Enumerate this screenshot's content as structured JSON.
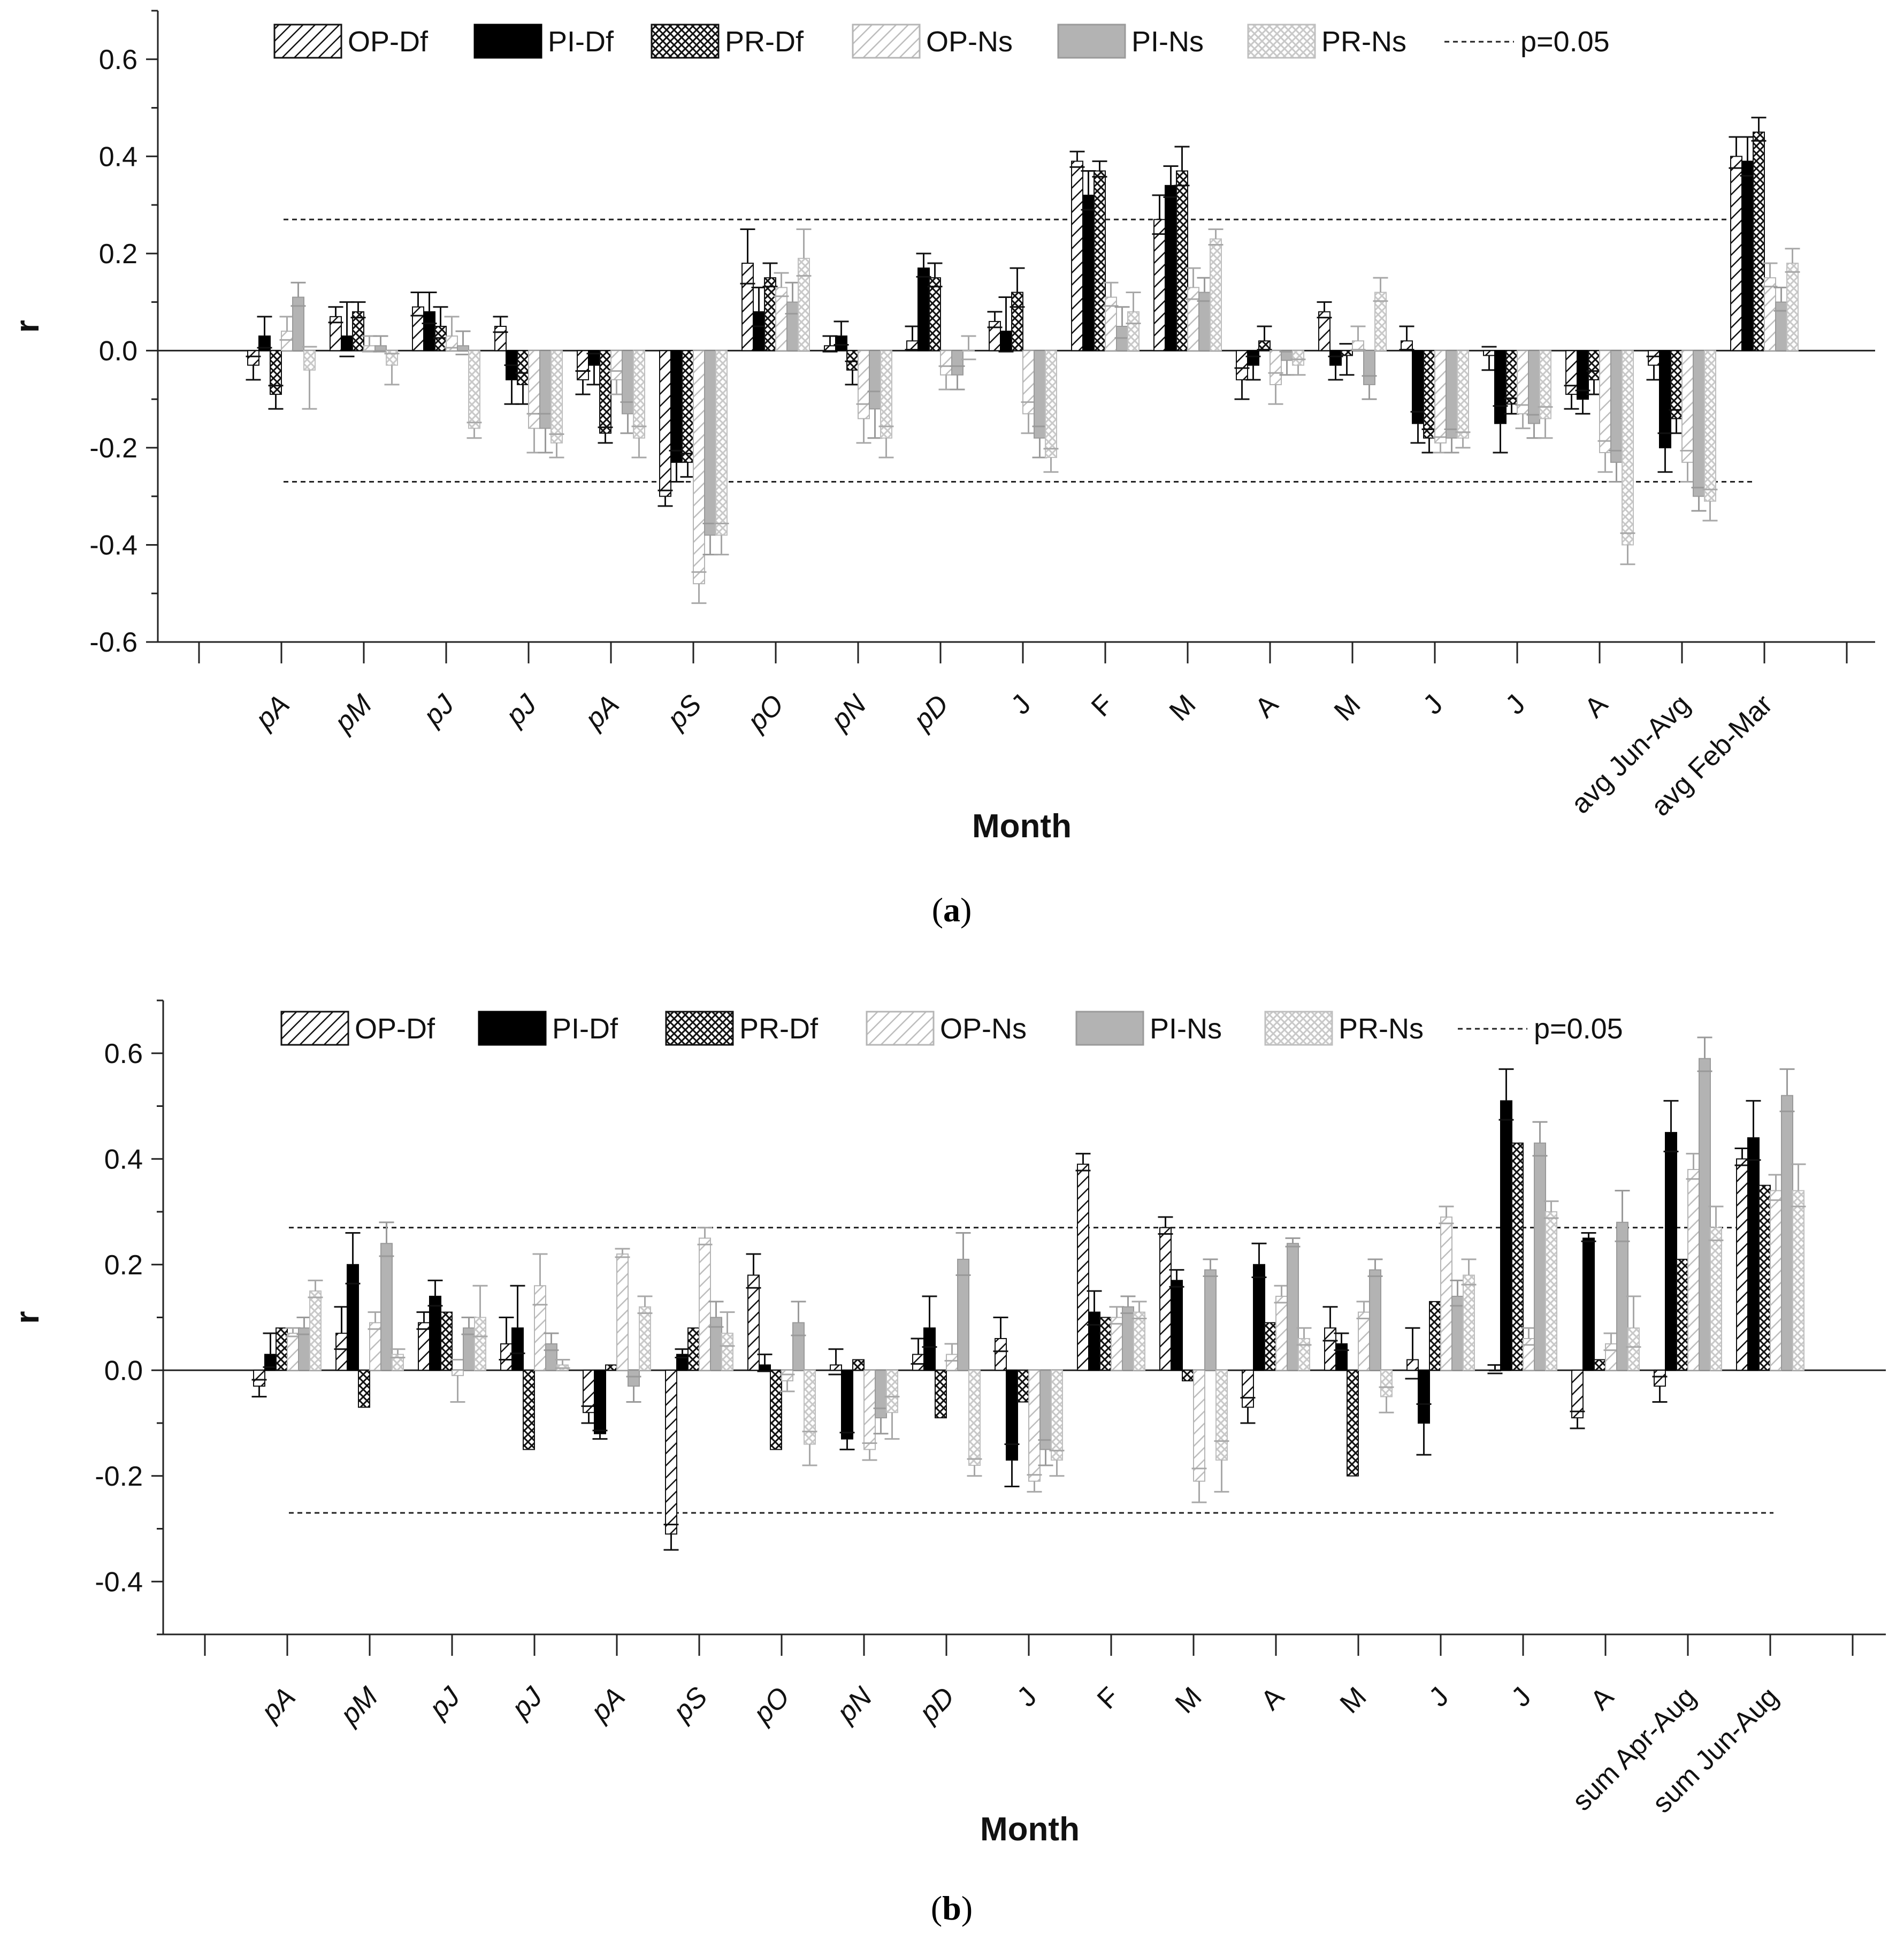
{
  "figure": {
    "caption_a_label": "a",
    "caption_b_label": "b"
  },
  "chart_data": [
    {
      "panel": "a",
      "type": "bar",
      "title": "",
      "xlabel": "Month",
      "ylabel": "r",
      "ylim": [
        -0.6,
        0.7
      ],
      "yticks": [
        -0.6,
        -0.4,
        -0.2,
        0.0,
        0.2,
        0.4,
        0.6
      ],
      "significance_lines": [
        0.27,
        -0.27
      ],
      "significance_label": "p=0.05",
      "legend_position": "top",
      "categories": [
        "pA",
        "pM",
        "pJ",
        "pJ",
        "pA",
        "pS",
        "pO",
        "pN",
        "pD",
        "J",
        "F",
        "M",
        "A",
        "M",
        "J",
        "J",
        "A",
        "avg Jun-Avg",
        "avg Feb-Mar"
      ],
      "series": [
        {
          "name": "OP-Df",
          "style": "hatch-dark",
          "values": [
            -0.03,
            0.07,
            0.09,
            0.05,
            -0.06,
            -0.3,
            0.18,
            0.01,
            0.02,
            0.06,
            0.39,
            0.27,
            -0.06,
            0.08,
            0.02,
            -0.01,
            -0.09,
            -0.03,
            0.4
          ],
          "errors": [
            0.03,
            0.02,
            0.03,
            0.02,
            0.03,
            0.02,
            0.07,
            0.02,
            0.03,
            0.02,
            0.02,
            0.05,
            0.04,
            0.02,
            0.03,
            0.03,
            0.03,
            0.03,
            0.04
          ]
        },
        {
          "name": "PI-Df",
          "style": "solid-dark",
          "values": [
            0.03,
            0.03,
            0.08,
            -0.06,
            -0.03,
            -0.23,
            0.08,
            0.03,
            0.17,
            0.04,
            0.32,
            0.34,
            -0.03,
            -0.03,
            -0.15,
            -0.15,
            -0.1,
            -0.2,
            0.39
          ],
          "errors": [
            0.04,
            0.07,
            0.04,
            0.05,
            0.04,
            0.04,
            0.05,
            0.03,
            0.03,
            0.07,
            0.05,
            0.04,
            0.03,
            0.03,
            0.04,
            0.06,
            0.03,
            0.05,
            0.05
          ]
        },
        {
          "name": "PR-Df",
          "style": "crosshatch-dark",
          "values": [
            -0.09,
            0.08,
            0.05,
            -0.07,
            -0.17,
            -0.23,
            0.15,
            -0.04,
            0.15,
            0.12,
            0.37,
            0.37,
            0.02,
            -0.01,
            -0.18,
            -0.11,
            -0.06,
            -0.14,
            0.45
          ],
          "errors": [
            0.03,
            0.02,
            0.04,
            0.04,
            0.02,
            0.03,
            0.03,
            0.03,
            0.03,
            0.05,
            0.02,
            0.05,
            0.03,
            0.04,
            0.03,
            0.02,
            0.03,
            0.03,
            0.03
          ]
        },
        {
          "name": "OP-Ns",
          "style": "hatch-light",
          "values": [
            0.04,
            0.01,
            0.03,
            -0.16,
            -0.06,
            -0.48,
            0.13,
            -0.14,
            -0.05,
            -0.13,
            0.11,
            0.13,
            -0.07,
            0.02,
            -0.19,
            -0.13,
            -0.21,
            -0.23,
            0.15
          ],
          "errors": [
            0.03,
            0.02,
            0.04,
            0.05,
            0.03,
            0.04,
            0.03,
            0.05,
            0.03,
            0.04,
            0.03,
            0.04,
            0.04,
            0.03,
            0.02,
            0.03,
            0.04,
            0.04,
            0.03
          ]
        },
        {
          "name": "PI-Ns",
          "style": "solid-light",
          "values": [
            0.11,
            0.01,
            0.01,
            -0.16,
            -0.13,
            -0.38,
            0.1,
            -0.12,
            -0.05,
            -0.18,
            0.05,
            0.12,
            -0.02,
            -0.07,
            -0.18,
            -0.15,
            -0.23,
            -0.3,
            0.1
          ],
          "errors": [
            0.03,
            0.02,
            0.03,
            0.05,
            0.04,
            0.04,
            0.04,
            0.06,
            0.03,
            0.04,
            0.04,
            0.03,
            0.03,
            0.03,
            0.03,
            0.03,
            0.04,
            0.03,
            0.03
          ]
        },
        {
          "name": "PR-Ns",
          "style": "crosshatch-light",
          "values": [
            -0.04,
            -0.03,
            -0.16,
            -0.19,
            -0.18,
            -0.38,
            0.19,
            -0.18,
            0.0,
            -0.22,
            0.08,
            0.23,
            -0.03,
            0.12,
            -0.18,
            -0.14,
            -0.4,
            -0.31,
            0.18
          ],
          "errors": [
            0.08,
            0.04,
            0.02,
            0.03,
            0.04,
            0.04,
            0.06,
            0.04,
            0.03,
            0.03,
            0.04,
            0.02,
            0.02,
            0.03,
            0.02,
            0.04,
            0.04,
            0.04,
            0.03
          ]
        }
      ]
    },
    {
      "panel": "b",
      "type": "bar",
      "title": "",
      "xlabel": "Month",
      "ylabel": "r",
      "ylim": [
        -0.5,
        0.7
      ],
      "yticks": [
        -0.4,
        -0.2,
        0.0,
        0.2,
        0.4,
        0.6
      ],
      "significance_lines": [
        0.27,
        -0.27
      ],
      "significance_label": "p=0.05",
      "legend_position": "top",
      "categories": [
        "pA",
        "pM",
        "pJ",
        "pJ",
        "pA",
        "pS",
        "pO",
        "pN",
        "pD",
        "J",
        "F",
        "M",
        "A",
        "M",
        "J",
        "J",
        "A",
        "sum Apr-Aug",
        "sum Jun-Aug"
      ],
      "series": [
        {
          "name": "OP-Df",
          "style": "hatch-dark",
          "values": [
            -0.03,
            0.07,
            0.09,
            0.05,
            -0.08,
            -0.31,
            0.18,
            0.01,
            0.03,
            0.06,
            0.39,
            0.27,
            -0.07,
            0.08,
            0.02,
            0.0,
            -0.09,
            -0.03,
            0.4
          ],
          "errors": [
            0.02,
            0.05,
            0.02,
            0.05,
            0.02,
            0.03,
            0.04,
            0.03,
            0.03,
            0.04,
            0.02,
            0.02,
            0.03,
            0.04,
            0.06,
            0.01,
            0.02,
            0.03,
            0.02
          ]
        },
        {
          "name": "PI-Df",
          "style": "solid-dark",
          "values": [
            0.03,
            0.2,
            0.14,
            0.08,
            -0.12,
            0.03,
            0.01,
            -0.13,
            0.08,
            -0.17,
            0.11,
            0.17,
            0.2,
            0.05,
            -0.1,
            0.51,
            0.25,
            0.45,
            0.44
          ],
          "errors": [
            0.04,
            0.06,
            0.03,
            0.08,
            0.01,
            0.01,
            0.02,
            0.02,
            0.06,
            0.05,
            0.04,
            0.02,
            0.04,
            0.02,
            0.06,
            0.06,
            0.01,
            0.06,
            0.07
          ]
        },
        {
          "name": "PR-Df",
          "style": "crosshatch-dark",
          "values": [
            0.08,
            -0.07,
            0.11,
            -0.15,
            0.01,
            0.08,
            -0.15,
            0.02,
            -0.09,
            -0.06,
            0.1,
            -0.02,
            0.09,
            -0.2,
            0.13,
            0.43,
            0.02,
            0.21,
            0.35
          ]
        },
        {
          "name": "OP-Ns",
          "style": "hatch-light",
          "values": [
            0.07,
            0.09,
            -0.01,
            0.16,
            0.22,
            0.25,
            -0.02,
            -0.15,
            0.03,
            -0.21,
            0.1,
            -0.21,
            0.14,
            0.11,
            0.29,
            0.06,
            0.05,
            0.38,
            0.34
          ],
          "errors": [
            0.01,
            0.02,
            0.05,
            0.06,
            0.01,
            0.02,
            0.02,
            0.02,
            0.02,
            0.02,
            0.02,
            0.04,
            0.02,
            0.02,
            0.02,
            0.02,
            0.02,
            0.03,
            0.03
          ]
        },
        {
          "name": "PI-Ns",
          "style": "solid-light",
          "values": [
            0.08,
            0.24,
            0.08,
            0.05,
            -0.03,
            0.1,
            0.09,
            -0.09,
            0.21,
            -0.15,
            0.12,
            0.19,
            0.24,
            0.19,
            0.14,
            0.43,
            0.28,
            0.59,
            0.52
          ],
          "errors": [
            0.02,
            0.04,
            0.02,
            0.02,
            0.03,
            0.03,
            0.04,
            0.03,
            0.05,
            0.03,
            0.02,
            0.02,
            0.01,
            0.02,
            0.03,
            0.04,
            0.06,
            0.04,
            0.05
          ]
        },
        {
          "name": "PR-Ns",
          "style": "crosshatch-light",
          "values": [
            0.15,
            0.03,
            0.1,
            0.01,
            0.12,
            0.07,
            -0.14,
            -0.08,
            -0.18,
            -0.17,
            0.11,
            -0.17,
            0.06,
            -0.05,
            0.18,
            0.3,
            0.08,
            0.27,
            0.34
          ],
          "errors": [
            0.02,
            0.01,
            0.06,
            0.01,
            0.02,
            0.04,
            0.04,
            0.05,
            0.02,
            0.03,
            0.02,
            0.06,
            0.02,
            0.03,
            0.03,
            0.02,
            0.06,
            0.04,
            0.05
          ]
        }
      ]
    }
  ]
}
